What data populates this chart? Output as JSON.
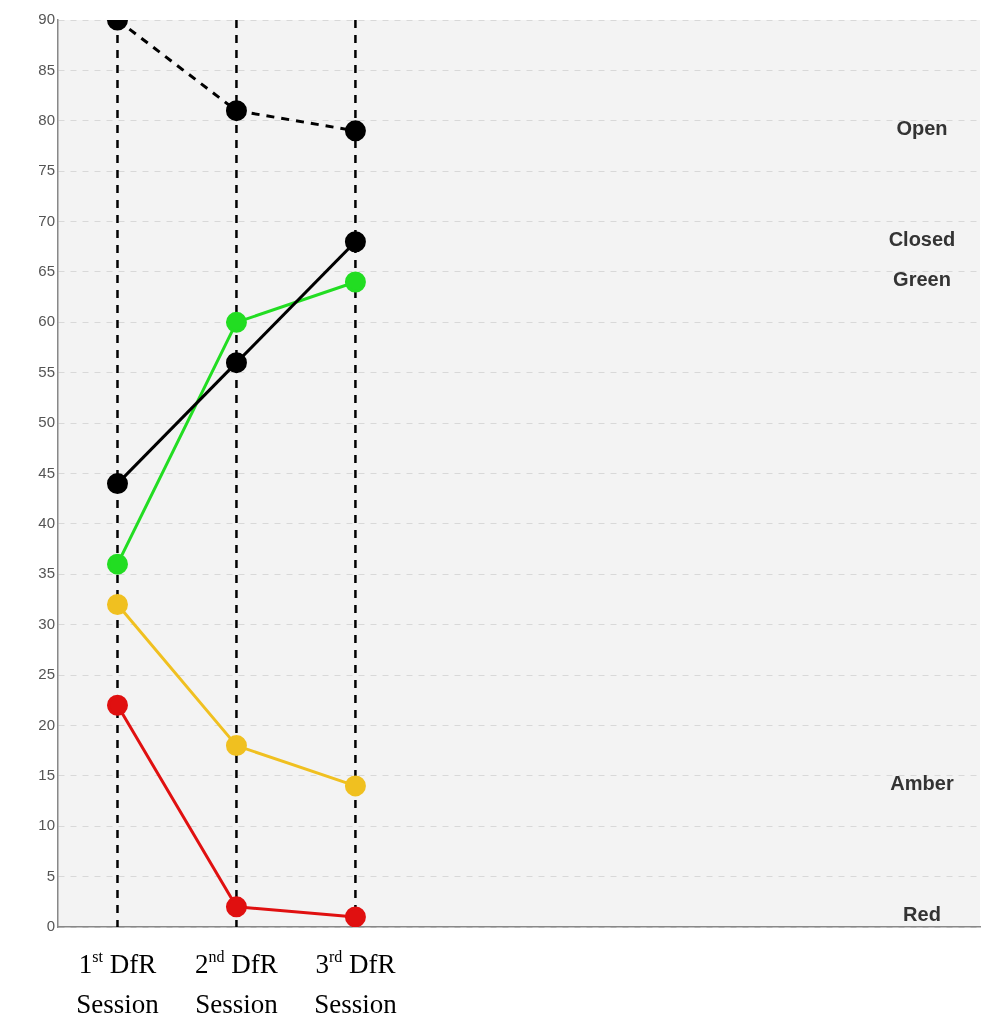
{
  "chart_data": {
    "type": "line",
    "x": [
      1,
      2,
      3
    ],
    "xlim": [
      0.5,
      8.25
    ],
    "xticks": [
      {
        "value": 1,
        "label": "1$^{st}$ DfR Session"
      },
      {
        "value": 2,
        "label": "2$^{nd}$ DfR Session"
      },
      {
        "value": 3,
        "label": "3$^{rd}$ DfR Session"
      }
    ],
    "ylim": [
      0,
      90
    ],
    "yticks": [
      0,
      5,
      10,
      15,
      20,
      25,
      30,
      35,
      40,
      45,
      50,
      55,
      60,
      65,
      70,
      75,
      80,
      85,
      90
    ],
    "grid": "y",
    "legend": false,
    "marker": "circle",
    "line_style": "solid",
    "series": [
      {
        "name": "Open",
        "color": "#000000",
        "values": [
          90,
          81,
          79
        ],
        "line_style": "dashed"
      },
      {
        "name": "Closed",
        "color": "#000000",
        "values": [
          44,
          56,
          68
        ]
      },
      {
        "name": "Green",
        "color": "#22dd22",
        "values": [
          36,
          60,
          64
        ]
      },
      {
        "name": "Amber",
        "color": "#f0c020",
        "values": [
          32,
          18,
          14
        ]
      },
      {
        "name": "Red",
        "color": "#e01010",
        "values": [
          22,
          2,
          1
        ]
      }
    ],
    "ref_lines": [
      {
        "axis": "x",
        "value": 1,
        "color": "#000000",
        "line_style": "dashed"
      },
      {
        "axis": "x",
        "value": 2,
        "color": "#000000",
        "line_style": "dashed"
      },
      {
        "axis": "x",
        "value": 3,
        "color": "#000000",
        "line_style": "dashed"
      }
    ]
  }
}
